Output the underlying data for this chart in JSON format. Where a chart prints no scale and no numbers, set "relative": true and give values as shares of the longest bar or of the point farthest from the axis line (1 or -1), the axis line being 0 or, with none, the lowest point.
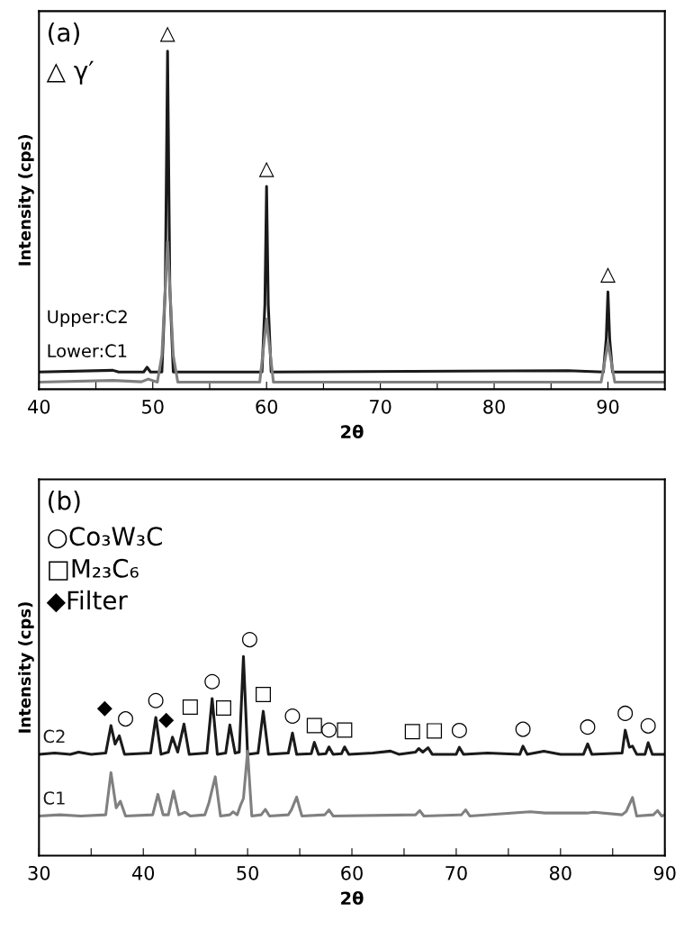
{
  "chart_data": [
    {
      "type": "line",
      "relative": true,
      "xlabel": "2θ",
      "ylabel": "Intensity (cps)",
      "xlim": [
        40,
        95
      ],
      "xticks": [
        40,
        {
          "value": 45,
          "label": null
        },
        50,
        {
          "value": 55,
          "label": null
        },
        60,
        {
          "value": 65,
          "label": null
        },
        70,
        {
          "value": 75,
          "label": null
        },
        80,
        {
          "value": 85,
          "label": null
        },
        90
      ],
      "grid": false,
      "legend": false,
      "series": [
        {
          "color": "#1a1a1a",
          "x": [
            40,
            46.5,
            47,
            49.2,
            49.5,
            49.8,
            50.8,
            51.1,
            51.3,
            51.5,
            51.8,
            59.6,
            59.85,
            60,
            60.15,
            60.4,
            86.5,
            89.6,
            89.85,
            90,
            90.15,
            90.4,
            95
          ],
          "values": [
            0.051,
            0.056,
            0.051,
            0.051,
            0.065,
            0.051,
            0.051,
            0.3,
            1,
            0.3,
            0.051,
            0.051,
            0.25,
            0.6,
            0.25,
            0.051,
            0.055,
            0.051,
            0.15,
            0.288,
            0.15,
            0.051,
            0.051
          ]
        },
        {
          "color": "#808080",
          "x": [
            40,
            46.5,
            49,
            49.6,
            50.4,
            50.8,
            51.3,
            51.8,
            52.2,
            59.4,
            60,
            60.6,
            89.4,
            90,
            90.6,
            95
          ],
          "values": [
            0.021,
            0.026,
            0.022,
            0.03,
            0.021,
            0.1,
            0.437,
            0.1,
            0.021,
            0.021,
            0.207,
            0.021,
            0.021,
            0.137,
            0.021,
            0.021
          ]
        }
      ],
      "annotations": [
        "(a)",
        "△ γ′",
        "Upper:C2",
        "Lower:C1",
        {
          "text": "△",
          "x": 51.3,
          "y": 1
        },
        {
          "text": "△",
          "x": 60,
          "y": 0.6
        },
        {
          "text": "△",
          "x": 90,
          "y": 0.288
        }
      ]
    },
    {
      "type": "line",
      "relative": true,
      "xlabel": "2θ",
      "ylabel": "Intensity (cps)",
      "xlim": [
        30,
        90
      ],
      "xticks": [
        30,
        {
          "value": 35,
          "label": null
        },
        40,
        {
          "value": 45,
          "label": null
        },
        50,
        {
          "value": 55,
          "label": null
        },
        60,
        {
          "value": 65,
          "label": null
        },
        70,
        {
          "value": 75,
          "label": null
        },
        80,
        {
          "value": 85,
          "label": null
        },
        90
      ],
      "grid": false,
      "legend": false,
      "series": [
        {
          "name": "C2",
          "color": "#1a1a1a",
          "x": [
            30,
            31.5,
            33,
            33.8,
            35,
            36.4,
            36.9,
            37.3,
            37.7,
            38.2,
            40.7,
            41.2,
            41.7,
            42.4,
            42.8,
            43.3,
            43.9,
            44.4,
            46.1,
            46.6,
            47.1,
            47.9,
            48.3,
            48.8,
            49.2,
            49.6,
            50,
            51,
            51.5,
            52,
            53.9,
            54.3,
            54.7,
            56.1,
            56.4,
            56.8,
            57.5,
            57.8,
            58.2,
            59,
            59.3,
            59.7,
            62,
            63.7,
            64.5,
            66.1,
            66.4,
            66.8,
            67.3,
            67.7,
            70,
            70.3,
            70.7,
            73,
            76.1,
            76.4,
            76.8,
            78.4,
            80,
            82.2,
            82.6,
            83,
            85.9,
            86.2,
            86.6,
            86.9,
            87.3,
            88.1,
            88.4,
            88.8,
            90
          ],
          "values": [
            0.509,
            0.515,
            0.509,
            0.52,
            0.509,
            0.515,
            0.653,
            0.56,
            0.602,
            0.509,
            0.515,
            0.694,
            0.509,
            0.52,
            0.595,
            0.52,
            0.661,
            0.509,
            0.515,
            0.789,
            0.509,
            0.515,
            0.657,
            0.515,
            0.52,
            1,
            0.509,
            0.515,
            0.725,
            0.509,
            0.515,
            0.616,
            0.509,
            0.512,
            0.569,
            0.509,
            0.512,
            0.546,
            0.509,
            0.512,
            0.546,
            0.509,
            0.515,
            0.525,
            0.509,
            0.52,
            0.538,
            0.52,
            0.542,
            0.509,
            0.509,
            0.544,
            0.509,
            0.515,
            0.509,
            0.55,
            0.509,
            0.524,
            0.509,
            0.509,
            0.561,
            0.509,
            0.515,
            0.63,
            0.545,
            0.55,
            0.509,
            0.509,
            0.567,
            0.509,
            0.509
          ]
        },
        {
          "name": "C1",
          "color": "#808080",
          "x": [
            30,
            32,
            34,
            36.4,
            36.9,
            37.4,
            37.8,
            38.3,
            40.9,
            41.4,
            41.9,
            42.4,
            42.9,
            43.4,
            44,
            44.5,
            45.9,
            46.3,
            46.9,
            47.4,
            48.3,
            48.6,
            49,
            49.3,
            49.6,
            50,
            50.4,
            51.3,
            51.7,
            52.1,
            53.9,
            54.2,
            54.7,
            55.2,
            57.4,
            57.8,
            58.2,
            66.1,
            66.5,
            66.9,
            70.5,
            70.9,
            71.3,
            77.1,
            78.5,
            82.5,
            83.2,
            85.9,
            86.3,
            86.9,
            87.3,
            88.9,
            89.3,
            89.7,
            90
          ],
          "values": [
            0.199,
            0.205,
            0.199,
            0.205,
            0.417,
            0.24,
            0.273,
            0.199,
            0.205,
            0.308,
            0.205,
            0.205,
            0.324,
            0.205,
            0.218,
            0.199,
            0.205,
            0.267,
            0.396,
            0.199,
            0.205,
            0.22,
            0.205,
            0.25,
            0.287,
            0.524,
            0.199,
            0.205,
            0.232,
            0.199,
            0.205,
            0.23,
            0.294,
            0.199,
            0.205,
            0.23,
            0.199,
            0.205,
            0.226,
            0.199,
            0.205,
            0.23,
            0.199,
            0.22,
            0.214,
            0.214,
            0.218,
            0.205,
            0.222,
            0.292,
            0.199,
            0.205,
            0.226,
            0.199,
            0.205
          ]
        }
      ],
      "annotations": [
        "(b)",
        "○Co₃W₃C",
        "□M₂₃C₆",
        "◆Filter",
        {
          "text": "◆",
          "x": 36.9,
          "y": 0.653
        },
        {
          "text": "○",
          "x": 37.7,
          "y": 0.602
        },
        {
          "text": "○",
          "x": 41.2,
          "y": 0.694
        },
        {
          "text": "◆",
          "x": 42.8,
          "y": 0.595
        },
        {
          "text": "□",
          "x": 43.9,
          "y": 0.661
        },
        {
          "text": "○",
          "x": 46.6,
          "y": 0.789
        },
        {
          "text": "□",
          "x": 48.3,
          "y": 0.657
        },
        {
          "text": "○",
          "x": 49.6,
          "y": 1
        },
        {
          "text": "□",
          "x": 51.5,
          "y": 0.725
        },
        {
          "text": "○",
          "x": 54.3,
          "y": 0.616
        },
        {
          "text": "□",
          "x": 56.4,
          "y": 0.569
        },
        {
          "text": "○",
          "x": 57.8,
          "y": 0.546
        },
        {
          "text": "□",
          "x": 59.3,
          "y": 0.546
        },
        {
          "text": "□",
          "x": 66.4,
          "y": 0.538
        },
        {
          "text": "□",
          "x": 67.3,
          "y": 0.542
        },
        {
          "text": "○",
          "x": 70.3,
          "y": 0.544
        },
        {
          "text": "○",
          "x": 76.4,
          "y": 0.55
        },
        {
          "text": "○",
          "x": 82.6,
          "y": 0.561
        },
        {
          "text": "○",
          "x": 86.2,
          "y": 0.63
        },
        {
          "text": "○",
          "x": 88.4,
          "y": 0.567
        }
      ]
    }
  ]
}
